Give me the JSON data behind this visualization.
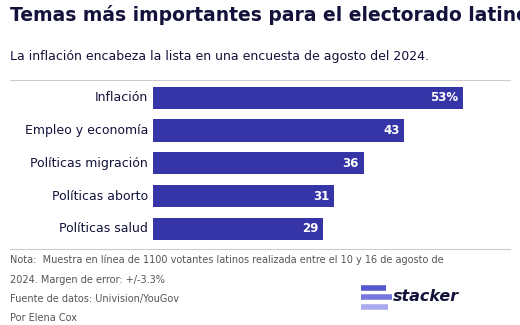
{
  "title": "Temas más importantes para el electorado latino",
  "subtitle": "La inflación encabeza la lista en una encuesta de agosto del 2024.",
  "categories": [
    "Políticas salud",
    "Políticas aborto",
    "Políticas migración",
    "Empleo y economía",
    "Inflación"
  ],
  "values": [
    29,
    31,
    36,
    43,
    53
  ],
  "labels": [
    "29",
    "31",
    "36",
    "43",
    "53%"
  ],
  "bar_color": "#3535a8",
  "text_color": "#ffffff",
  "dark_color": "#12123a",
  "background_color": "#ffffff",
  "note_line1": "Nota:  Muestra en línea de 1100 votantes latinos realizada entre el 10 y 16 de agosto de",
  "note_line2": "2024. Margen de error: +/-3.3%",
  "source_line1": "Fuente de datos: Univision/YouGov",
  "source_line2": "Por Elena Cox",
  "xlim": [
    0,
    61
  ],
  "title_fontsize": 13.5,
  "subtitle_fontsize": 9.0,
  "bar_label_fontsize": 8.5,
  "category_fontsize": 9.0,
  "note_fontsize": 7.0,
  "stacker_fontsize": 11.5
}
